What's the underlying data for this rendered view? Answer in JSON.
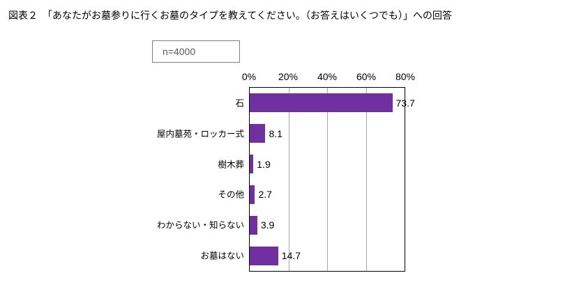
{
  "title": "図表２　「あなたがお墓参りに行くお墓のタイプを教えてください。（お答えはいくつでも）」への回答",
  "sample_size": "n=4000",
  "colors": {
    "bar": "#7030a0",
    "grid": "#a6a6a6",
    "plot_border": "#000000",
    "sample_box_border": "#7f7f7f",
    "sample_text": "#595959"
  },
  "chart_data": {
    "type": "bar",
    "orientation": "horizontal",
    "title": "図表２　「あなたがお墓参りに行くお墓のタイプを教えてください。（お答えはいくつでも）」への回答",
    "categories": [
      "石",
      "屋内墓苑・ロッカー式",
      "樹木葬",
      "その他",
      "わからない・知らない",
      "お墓はない"
    ],
    "values": [
      73.7,
      8.1,
      1.9,
      2.7,
      3.9,
      14.7
    ],
    "value_labels": [
      "73.7",
      "8.1",
      "1.9",
      "2.7",
      "3.9",
      "14.7"
    ],
    "xlim": [
      0,
      80
    ],
    "ticks": [
      0,
      20,
      40,
      60,
      80
    ],
    "tick_labels": [
      "0%",
      "20%",
      "40%",
      "60%",
      "80%"
    ],
    "grid": true,
    "legend": false,
    "xlabel": "",
    "ylabel": ""
  }
}
